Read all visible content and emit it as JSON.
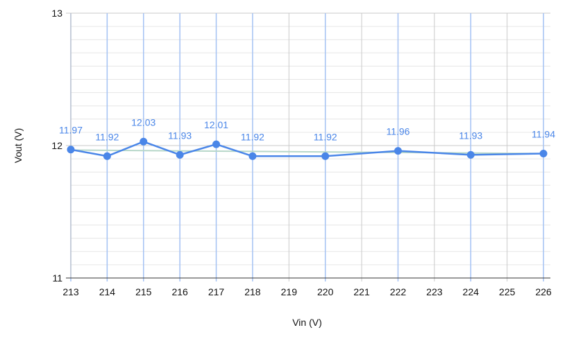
{
  "chart_data": {
    "type": "line",
    "title": "",
    "xlabel": "Vin (V)",
    "ylabel": "Vout (V)",
    "xlim": [
      213,
      226
    ],
    "ylim": [
      11,
      13
    ],
    "x_ticks": [
      213,
      214,
      215,
      216,
      217,
      218,
      219,
      220,
      221,
      222,
      223,
      224,
      225,
      226
    ],
    "y_ticks": [
      11,
      12,
      13
    ],
    "grid": true,
    "series": [
      {
        "x": [
          213,
          214,
          215,
          216,
          217,
          218,
          220,
          222,
          224,
          226
        ],
        "values": [
          11.97,
          11.92,
          12.03,
          11.93,
          12.01,
          11.92,
          11.92,
          11.96,
          11.93,
          11.94
        ],
        "labels": [
          "11.97",
          "11.92",
          "12.03",
          "11.93",
          "12.01",
          "11.92",
          "11.92",
          "11.96",
          "11.93",
          "11.94"
        ]
      }
    ],
    "trendline": {
      "x": [
        213,
        226
      ],
      "values": [
        11.966,
        11.94
      ]
    },
    "colors": {
      "line": "#4a86e8",
      "trend": "#b7d7c9",
      "grid_major": "#c9c9c9",
      "grid_minor": "#e6e6e6",
      "data_vline": "#a4c2f4"
    }
  }
}
